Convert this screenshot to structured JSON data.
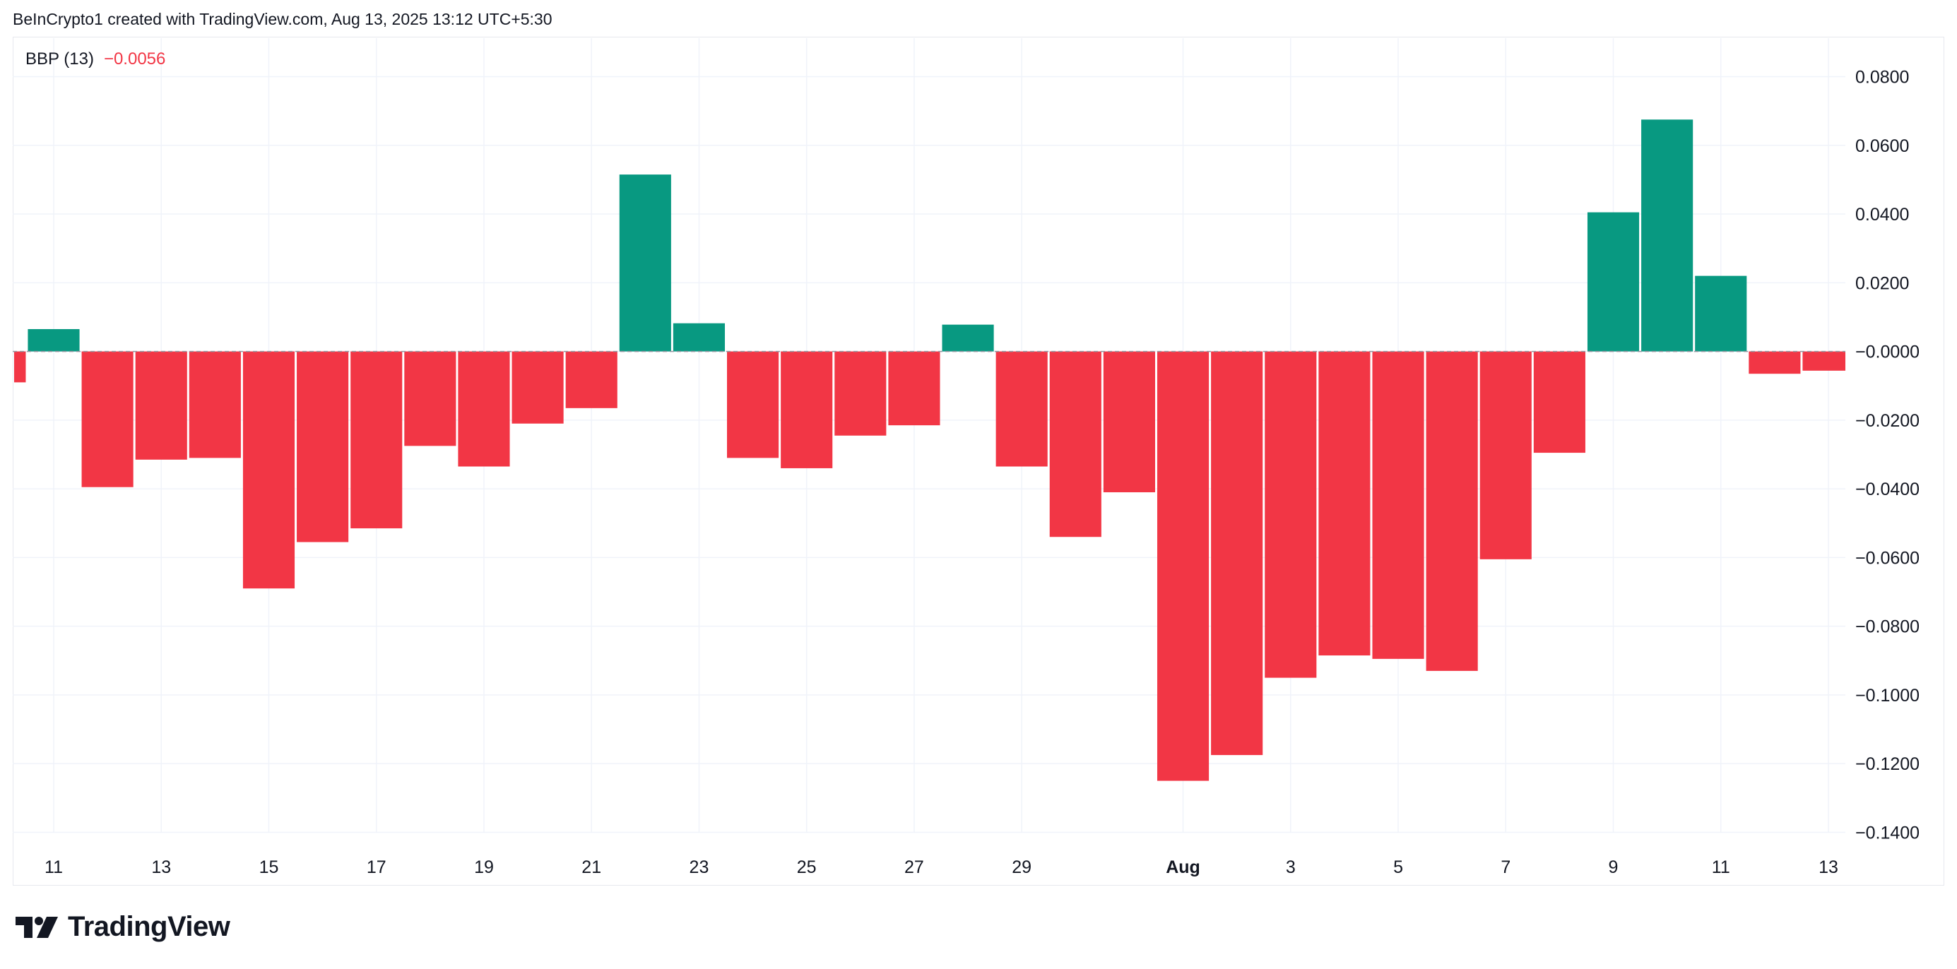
{
  "header": {
    "credit": "BeInCrypto1 created with TradingView.com, Aug 13, 2025 13:12 UTC+5:30"
  },
  "legend": {
    "indicator": "BBP (13)",
    "value": "−0.0056"
  },
  "brand": {
    "name": "TradingView",
    "icon": "tradingview-logo-icon"
  },
  "colors": {
    "positive": "#089981",
    "negative": "#f23645",
    "grid": "#f0f3fa",
    "text": "#131722"
  },
  "chart_data": {
    "type": "bar",
    "title": "",
    "xlabel": "",
    "ylabel": "",
    "ylim": [
      -0.14,
      0.08
    ],
    "grid": true,
    "y_ticks": [
      "0.0800",
      "0.0600",
      "0.0400",
      "0.0200",
      "−0.0000",
      "−0.0200",
      "−0.0400",
      "−0.0600",
      "−0.0800",
      "−0.1000",
      "−0.1200",
      "−0.1400"
    ],
    "y_tick_values": [
      0.08,
      0.06,
      0.04,
      0.02,
      0,
      -0.02,
      -0.04,
      -0.06,
      -0.08,
      -0.1,
      -0.12,
      -0.14
    ],
    "x_tick_labels": [
      "11",
      "13",
      "15",
      "17",
      "19",
      "21",
      "23",
      "25",
      "27",
      "29",
      "Aug",
      "3",
      "5",
      "7",
      "9",
      "11",
      "13"
    ],
    "x_tick_dates": [
      "2025-07-11",
      "2025-07-13",
      "2025-07-15",
      "2025-07-17",
      "2025-07-19",
      "2025-07-21",
      "2025-07-23",
      "2025-07-25",
      "2025-07-27",
      "2025-07-29",
      "2025-08-01",
      "2025-08-03",
      "2025-08-05",
      "2025-08-07",
      "2025-08-09",
      "2025-08-11",
      "2025-08-13"
    ],
    "series": [
      {
        "x": [
          "2025-07-10",
          "2025-07-11",
          "2025-07-12",
          "2025-07-13",
          "2025-07-14",
          "2025-07-15",
          "2025-07-16",
          "2025-07-17",
          "2025-07-18",
          "2025-07-19",
          "2025-07-20",
          "2025-07-21",
          "2025-07-22",
          "2025-07-23",
          "2025-07-24",
          "2025-07-25",
          "2025-07-26",
          "2025-07-27",
          "2025-07-28",
          "2025-07-29",
          "2025-07-30",
          "2025-07-31",
          "2025-08-01",
          "2025-08-02",
          "2025-08-03",
          "2025-08-04",
          "2025-08-05",
          "2025-08-06",
          "2025-08-07",
          "2025-08-08",
          "2025-08-09",
          "2025-08-10",
          "2025-08-11",
          "2025-08-12",
          "2025-08-13"
        ],
        "values": [
          -0.009,
          0.0065,
          -0.0395,
          -0.0315,
          -0.031,
          -0.069,
          -0.0555,
          -0.0515,
          -0.0275,
          -0.0335,
          -0.021,
          -0.0165,
          0.0515,
          0.0082,
          -0.031,
          -0.034,
          -0.0245,
          -0.0215,
          0.0078,
          -0.0335,
          -0.054,
          -0.041,
          -0.125,
          -0.1175,
          -0.095,
          -0.0885,
          -0.0895,
          -0.093,
          -0.0605,
          -0.0295,
          0.0405,
          0.0675,
          0.022,
          -0.0065,
          -0.0056
        ]
      }
    ]
  }
}
